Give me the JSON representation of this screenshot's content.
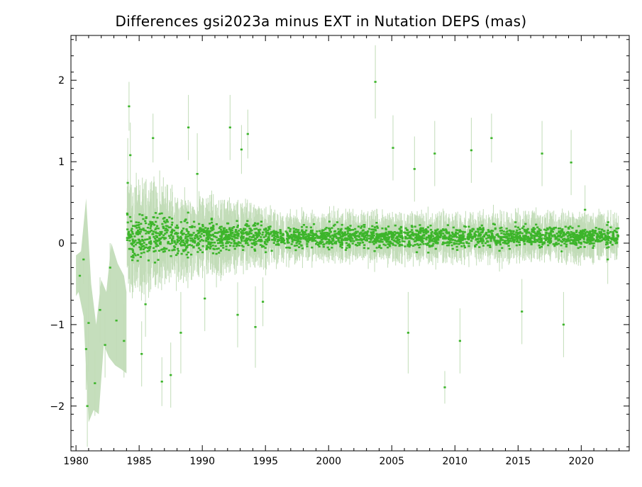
{
  "chart_data": {
    "type": "scatter",
    "title": "Differences gsi2023a minus EXT in Nutation DEPS (mas)",
    "xlabel": "",
    "ylabel": "",
    "xlim": [
      1979.6,
      2023.8
    ],
    "ylim": [
      -2.55,
      2.55
    ],
    "x_ticks": [
      1980,
      1985,
      1990,
      1995,
      2000,
      2005,
      2010,
      2015,
      2020
    ],
    "x_tick_labels": [
      "1980",
      "1985",
      "1990",
      "1995",
      "2000",
      "2005",
      "2010",
      "2015",
      "2020"
    ],
    "y_ticks": [
      -2,
      -1,
      0,
      1,
      2
    ],
    "y_tick_labels": [
      "−2",
      "−1",
      "0",
      "1",
      "2"
    ],
    "grid": false,
    "colors": {
      "points": "#3cb52a",
      "error_bars": "#c2dcb8",
      "axes": "#000000"
    },
    "series": [
      {
        "points": [
          {
            "x": 1980.3,
            "y": -0.4,
            "err": 0.25
          },
          {
            "x": 1980.6,
            "y": -0.2,
            "err": 0.3
          },
          {
            "x": 1980.8,
            "y": -1.3,
            "err": 0.5
          },
          {
            "x": 1980.9,
            "y": -2.0,
            "err": 0.5
          },
          {
            "x": 1981.0,
            "y": -0.98,
            "err": 0.6
          },
          {
            "x": 1981.5,
            "y": -1.72,
            "err": 0.4
          },
          {
            "x": 1981.9,
            "y": -0.82,
            "err": 0.4
          },
          {
            "x": 1982.3,
            "y": -1.25,
            "err": 0.4
          },
          {
            "x": 1982.7,
            "y": -0.3,
            "err": 0.3
          },
          {
            "x": 1983.2,
            "y": -0.95,
            "err": 0.5
          },
          {
            "x": 1983.8,
            "y": -1.2,
            "err": 0.45
          },
          {
            "x": 1984.1,
            "y": 0.74,
            "err": 0.55
          },
          {
            "x": 1984.2,
            "y": 1.68,
            "err": 0.3
          },
          {
            "x": 1984.3,
            "y": 1.08,
            "err": 0.4
          },
          {
            "x": 1985.2,
            "y": -1.36,
            "err": 0.4
          },
          {
            "x": 1985.5,
            "y": -0.75,
            "err": 0.4
          },
          {
            "x": 1986.1,
            "y": 1.29,
            "err": 0.3
          },
          {
            "x": 1986.8,
            "y": -1.7,
            "err": 0.3
          },
          {
            "x": 1987.5,
            "y": -1.62,
            "err": 0.4
          },
          {
            "x": 1988.3,
            "y": -1.1,
            "err": 0.5
          },
          {
            "x": 1988.9,
            "y": 1.42,
            "err": 0.4
          },
          {
            "x": 1989.6,
            "y": 0.85,
            "err": 0.5
          },
          {
            "x": 1990.2,
            "y": -0.68,
            "err": 0.4
          },
          {
            "x": 1992.2,
            "y": 1.42,
            "err": 0.4
          },
          {
            "x": 1992.8,
            "y": -0.88,
            "err": 0.4
          },
          {
            "x": 1993.1,
            "y": 1.15,
            "err": 0.3
          },
          {
            "x": 1993.6,
            "y": 1.34,
            "err": 0.3
          },
          {
            "x": 1994.2,
            "y": -1.03,
            "err": 0.5
          },
          {
            "x": 1994.8,
            "y": -0.72,
            "err": 0.3
          },
          {
            "x": 2003.7,
            "y": 1.98,
            "err": 0.45
          },
          {
            "x": 2005.1,
            "y": 1.17,
            "err": 0.4
          },
          {
            "x": 2006.3,
            "y": -1.1,
            "err": 0.5
          },
          {
            "x": 2006.8,
            "y": 0.91,
            "err": 0.4
          },
          {
            "x": 2008.4,
            "y": 1.1,
            "err": 0.4
          },
          {
            "x": 2009.2,
            "y": -1.77,
            "err": 0.2
          },
          {
            "x": 2010.4,
            "y": -1.2,
            "err": 0.4
          },
          {
            "x": 2011.3,
            "y": 1.14,
            "err": 0.4
          },
          {
            "x": 2012.9,
            "y": 1.29,
            "err": 0.3
          },
          {
            "x": 2015.3,
            "y": -0.84,
            "err": 0.4
          },
          {
            "x": 2016.9,
            "y": 1.1,
            "err": 0.4
          },
          {
            "x": 2018.6,
            "y": -1.0,
            "err": 0.4
          },
          {
            "x": 2019.2,
            "y": 0.99,
            "err": 0.4
          },
          {
            "x": 2020.3,
            "y": 0.41,
            "err": 0.3
          },
          {
            "x": 2022.1,
            "y": -0.2,
            "err": 0.3
          }
        ]
      }
    ],
    "generated_series_description": ""
  }
}
